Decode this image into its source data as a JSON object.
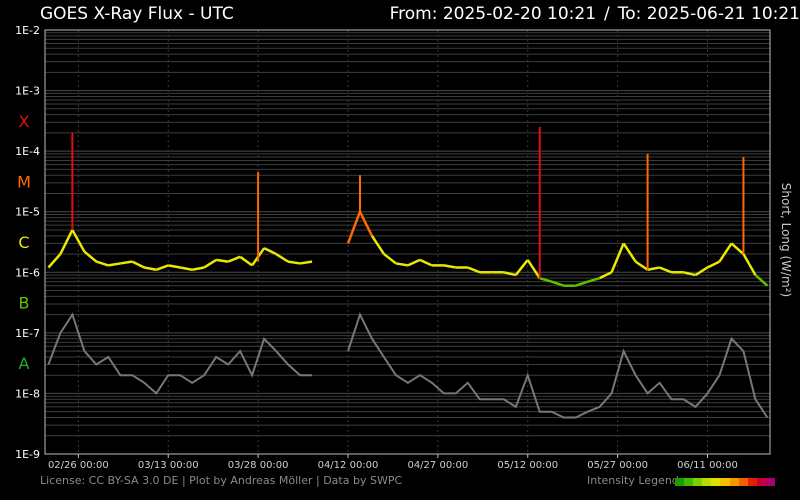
{
  "header": {
    "title": "GOES X-Ray Flux - UTC",
    "from": "From: 2025-02-20 10:21",
    "separator": "/",
    "to": "To: 2025-06-21 10:21"
  },
  "footer": {
    "credit": "License: CC BY-SA 3.0 DE | Plot by Andreas Möller | Data by SWPC",
    "legend_label": "Intensity Legend",
    "legend_colors": [
      "#1a9e00",
      "#3ebd00",
      "#7ccf00",
      "#b6dc00",
      "#e2e000",
      "#f2c200",
      "#f59400",
      "#f06000",
      "#e02000",
      "#c8003c",
      "#a8006c"
    ]
  },
  "colors": {
    "background": "#000000",
    "grid": "#3c3c3c",
    "short_wave": "#777777",
    "class_X": "#e01010",
    "class_M": "#ff6a00",
    "class_C": "#e8e800",
    "class_B": "#60c000",
    "class_A": "#20b020"
  },
  "chart_data": {
    "type": "line",
    "title": "GOES X-Ray Flux - UTC",
    "ylabel": "Short, Long (W/m²)",
    "yscale": "log",
    "ylim": [
      1e-09,
      0.01
    ],
    "xlim": [
      "2025-02-20T10:21",
      "2025-06-21T10:21"
    ],
    "y_tick_labels": [
      "1E-2",
      "1E-3",
      "1E-4",
      "1E-5",
      "1E-6",
      "1E-7",
      "1E-8",
      "1E-9"
    ],
    "x_tick_labels": [
      "02/26 00:00",
      "03/13 00:00",
      "03/28 00:00",
      "04/12 00:00",
      "04/27 00:00",
      "05/12 00:00",
      "05/27 00:00",
      "06/11 00:00"
    ],
    "flare_classes": [
      {
        "label": "X",
        "min": 0.0001,
        "color": "#e01010"
      },
      {
        "label": "M",
        "min": 1e-05,
        "color": "#ff6a00"
      },
      {
        "label": "C",
        "min": 1e-06,
        "color": "#e8e800"
      },
      {
        "label": "B",
        "min": 1e-07,
        "color": "#60c000"
      },
      {
        "label": "A",
        "min": 1e-08,
        "color": "#20b020"
      }
    ],
    "series": [
      {
        "name": "Long",
        "x": [
          "2025-02-21",
          "2025-02-23",
          "2025-02-25",
          "2025-02-27",
          "2025-03-01",
          "2025-03-03",
          "2025-03-05",
          "2025-03-07",
          "2025-03-09",
          "2025-03-11",
          "2025-03-13",
          "2025-03-15",
          "2025-03-17",
          "2025-03-19",
          "2025-03-21",
          "2025-03-23",
          "2025-03-25",
          "2025-03-27",
          "2025-03-29",
          "2025-03-31",
          "2025-04-02",
          "2025-04-04",
          "2025-04-06",
          "2025-04-08",
          "2025-04-10",
          "2025-04-12",
          "2025-04-14",
          "2025-04-16",
          "2025-04-18",
          "2025-04-20",
          "2025-04-22",
          "2025-04-24",
          "2025-04-26",
          "2025-04-28",
          "2025-04-30",
          "2025-05-02",
          "2025-05-04",
          "2025-05-06",
          "2025-05-08",
          "2025-05-10",
          "2025-05-12",
          "2025-05-14",
          "2025-05-16",
          "2025-05-18",
          "2025-05-20",
          "2025-05-22",
          "2025-05-24",
          "2025-05-26",
          "2025-05-28",
          "2025-05-30",
          "2025-06-01",
          "2025-06-03",
          "2025-06-05",
          "2025-06-07",
          "2025-06-09",
          "2025-06-11",
          "2025-06-13",
          "2025-06-15",
          "2025-06-17",
          "2025-06-19",
          "2025-06-21"
        ],
        "y": [
          1.2e-06,
          2e-06,
          5e-06,
          2.2e-06,
          1.5e-06,
          1.3e-06,
          1.4e-06,
          1.5e-06,
          1.2e-06,
          1.1e-06,
          1.3e-06,
          1.2e-06,
          1.1e-06,
          1.2e-06,
          1.6e-06,
          1.5e-06,
          1.8e-06,
          1.3e-06,
          2.5e-06,
          2e-06,
          1.5e-06,
          1.4e-06,
          1.5e-06,
          null,
          null,
          3e-06,
          1e-05,
          4e-06,
          2e-06,
          1.4e-06,
          1.3e-06,
          1.6e-06,
          1.3e-06,
          1.3e-06,
          1.2e-06,
          1.2e-06,
          1e-06,
          1e-06,
          1e-06,
          9e-07,
          1.6e-06,
          8e-07,
          7e-07,
          6e-07,
          6e-07,
          7e-07,
          8e-07,
          1e-06,
          3e-06,
          1.5e-06,
          1.1e-06,
          1.2e-06,
          1e-06,
          1e-06,
          9e-07,
          1.2e-06,
          1.5e-06,
          3e-06,
          2e-06,
          9e-07,
          6e-07
        ],
        "peaks": [
          {
            "x": "2025-02-25",
            "y": 0.0002
          },
          {
            "x": "2025-03-28",
            "y": 4.5e-05
          },
          {
            "x": "2025-04-14",
            "y": 4e-05
          },
          {
            "x": "2025-05-14",
            "y": 0.00025
          },
          {
            "x": "2025-06-01",
            "y": 9e-05
          },
          {
            "x": "2025-06-17",
            "y": 8e-05
          }
        ]
      },
      {
        "name": "Short",
        "x": [
          "2025-02-21",
          "2025-02-23",
          "2025-02-25",
          "2025-02-27",
          "2025-03-01",
          "2025-03-03",
          "2025-03-05",
          "2025-03-07",
          "2025-03-09",
          "2025-03-11",
          "2025-03-13",
          "2025-03-15",
          "2025-03-17",
          "2025-03-19",
          "2025-03-21",
          "2025-03-23",
          "2025-03-25",
          "2025-03-27",
          "2025-03-29",
          "2025-03-31",
          "2025-04-02",
          "2025-04-04",
          "2025-04-06",
          "2025-04-08",
          "2025-04-10",
          "2025-04-12",
          "2025-04-14",
          "2025-04-16",
          "2025-04-18",
          "2025-04-20",
          "2025-04-22",
          "2025-04-24",
          "2025-04-26",
          "2025-04-28",
          "2025-04-30",
          "2025-05-02",
          "2025-05-04",
          "2025-05-06",
          "2025-05-08",
          "2025-05-10",
          "2025-05-12",
          "2025-05-14",
          "2025-05-16",
          "2025-05-18",
          "2025-05-20",
          "2025-05-22",
          "2025-05-24",
          "2025-05-26",
          "2025-05-28",
          "2025-05-30",
          "2025-06-01",
          "2025-06-03",
          "2025-06-05",
          "2025-06-07",
          "2025-06-09",
          "2025-06-11",
          "2025-06-13",
          "2025-06-15",
          "2025-06-17",
          "2025-06-19",
          "2025-06-21"
        ],
        "y": [
          3e-08,
          1e-07,
          2e-07,
          5e-08,
          3e-08,
          4e-08,
          2e-08,
          2e-08,
          1.5e-08,
          1e-08,
          2e-08,
          2e-08,
          1.5e-08,
          2e-08,
          4e-08,
          3e-08,
          5e-08,
          2e-08,
          8e-08,
          5e-08,
          3e-08,
          2e-08,
          2e-08,
          null,
          null,
          5e-08,
          2e-07,
          8e-08,
          4e-08,
          2e-08,
          1.5e-08,
          2e-08,
          1.5e-08,
          1e-08,
          1e-08,
          1.5e-08,
          8e-09,
          8e-09,
          8e-09,
          6e-09,
          2e-08,
          5e-09,
          5e-09,
          4e-09,
          4e-09,
          5e-09,
          6e-09,
          1e-08,
          5e-08,
          2e-08,
          1e-08,
          1.5e-08,
          8e-09,
          8e-09,
          6e-09,
          1e-08,
          2e-08,
          8e-08,
          5e-08,
          8e-09,
          4e-09
        ]
      }
    ]
  }
}
